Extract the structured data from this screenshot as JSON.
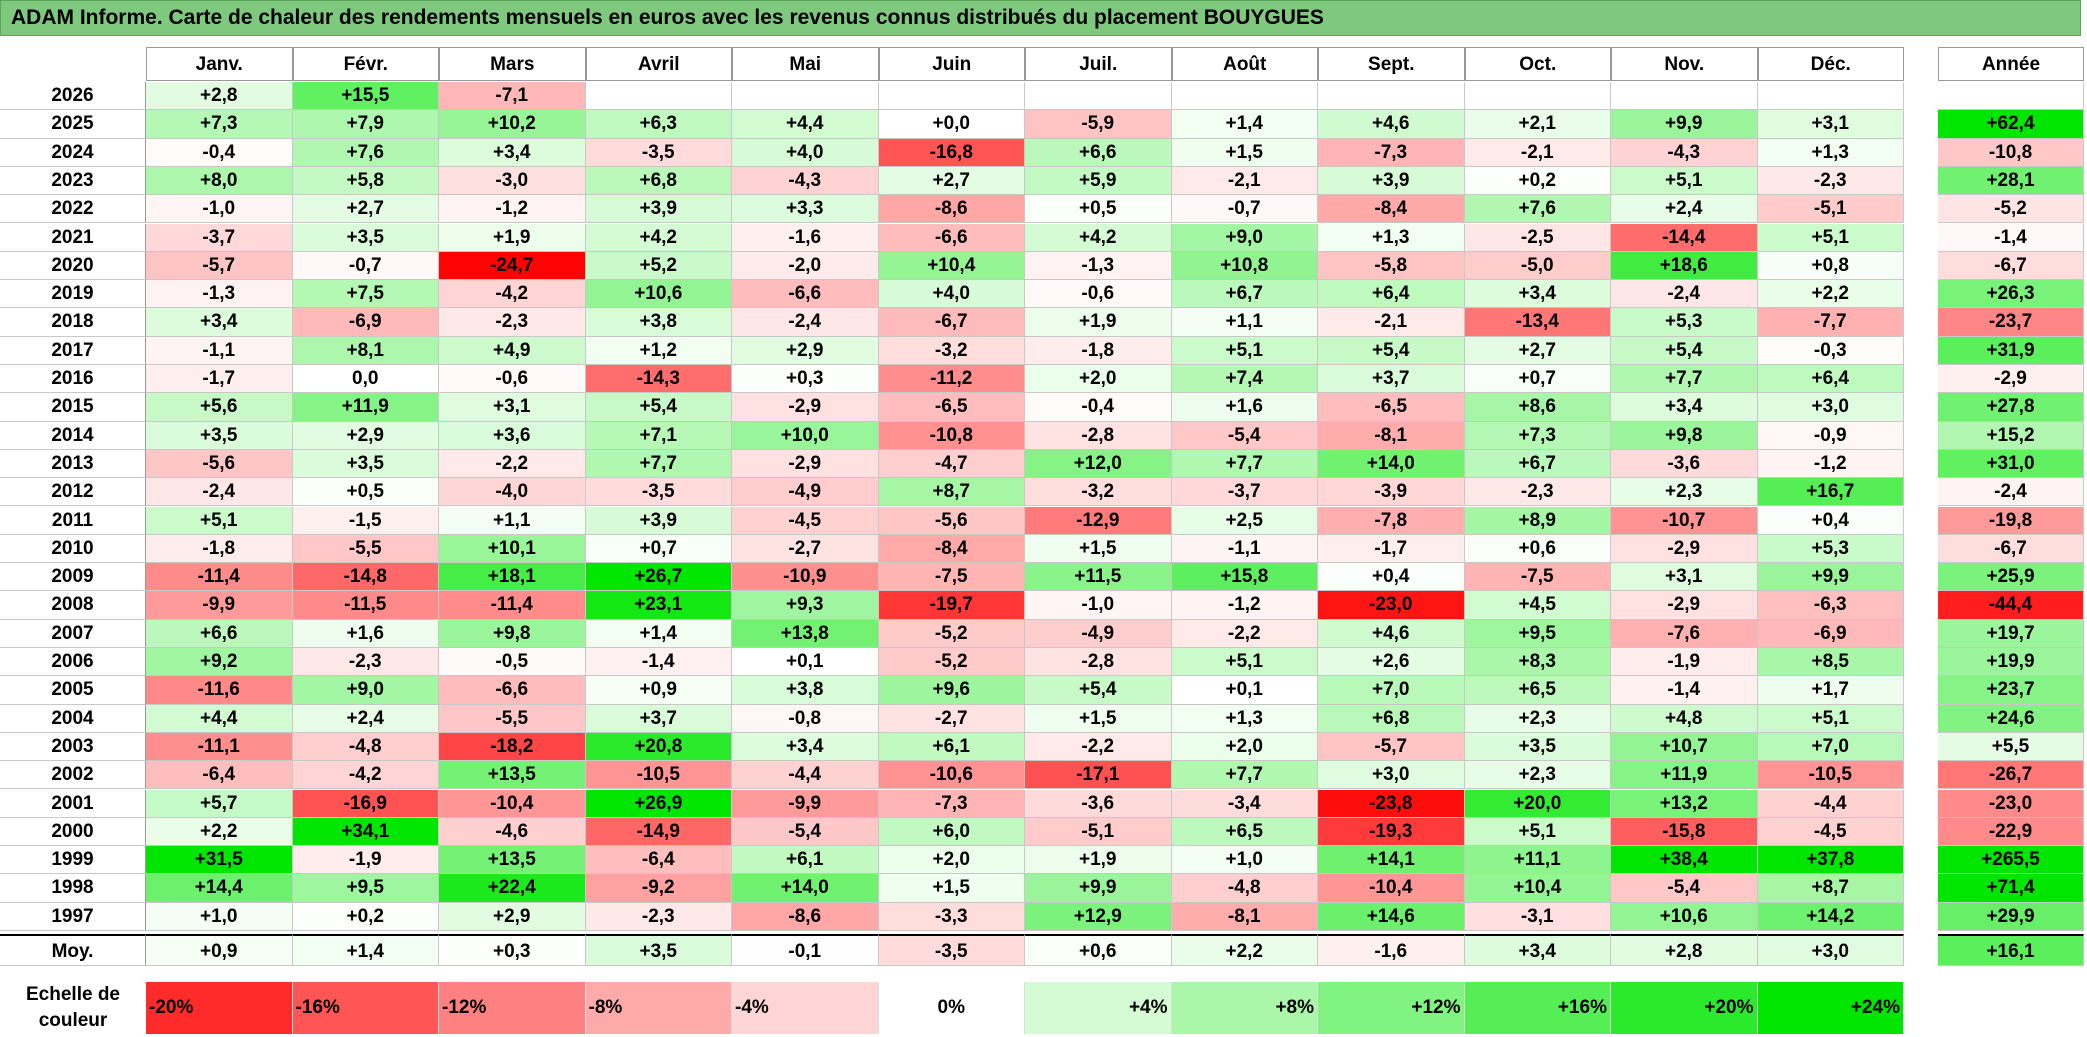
{
  "title": "ADAM Informe. Carte de chaleur des rendements mensuels en euros avec les revenus connus distribués du placement BOUYGUES",
  "chart_data": {
    "type": "heatmap",
    "title": "ADAM Informe. Carte de chaleur des rendements mensuels en euros avec les revenus connus distribués du placement BOUYGUES",
    "columns": [
      "Janv.",
      "Févr.",
      "Mars",
      "Avril",
      "Mai",
      "Juin",
      "Juil.",
      "Août",
      "Sept.",
      "Oct.",
      "Nov.",
      "Déc."
    ],
    "year_header": "Année",
    "rows": [
      {
        "year": "2026",
        "values": [
          "+2,8",
          "+15,5",
          "-7,1",
          "",
          "",
          "",
          "",
          "",
          "",
          "",
          "",
          ""
        ],
        "annual": ""
      },
      {
        "year": "2025",
        "values": [
          "+7,3",
          "+7,9",
          "+10,2",
          "+6,3",
          "+4,4",
          "+0,0",
          "-5,9",
          "+1,4",
          "+4,6",
          "+2,1",
          "+9,9",
          "+3,1"
        ],
        "annual": "+62,4"
      },
      {
        "year": "2024",
        "values": [
          "-0,4",
          "+7,6",
          "+3,4",
          "-3,5",
          "+4,0",
          "-16,8",
          "+6,6",
          "+1,5",
          "-7,3",
          "-2,1",
          "-4,3",
          "+1,3"
        ],
        "annual": "-10,8"
      },
      {
        "year": "2023",
        "values": [
          "+8,0",
          "+5,8",
          "-3,0",
          "+6,8",
          "-4,3",
          "+2,7",
          "+5,9",
          "-2,1",
          "+3,9",
          "+0,2",
          "+5,1",
          "-2,3"
        ],
        "annual": "+28,1"
      },
      {
        "year": "2022",
        "values": [
          "-1,0",
          "+2,7",
          "-1,2",
          "+3,9",
          "+3,3",
          "-8,6",
          "+0,5",
          "-0,7",
          "-8,4",
          "+7,6",
          "+2,4",
          "-5,1"
        ],
        "annual": "-5,2"
      },
      {
        "year": "2021",
        "values": [
          "-3,7",
          "+3,5",
          "+1,9",
          "+4,2",
          "-1,6",
          "-6,6",
          "+4,2",
          "+9,0",
          "+1,3",
          "-2,5",
          "-14,4",
          "+5,1"
        ],
        "annual": "-1,4"
      },
      {
        "year": "2020",
        "values": [
          "-5,7",
          "-0,7",
          "-24,7",
          "+5,2",
          "-2,0",
          "+10,4",
          "-1,3",
          "+10,8",
          "-5,8",
          "-5,0",
          "+18,6",
          "+0,8"
        ],
        "annual": "-6,7"
      },
      {
        "year": "2019",
        "values": [
          "-1,3",
          "+7,5",
          "-4,2",
          "+10,6",
          "-6,6",
          "+4,0",
          "-0,6",
          "+6,7",
          "+6,4",
          "+3,4",
          "-2,4",
          "+2,2"
        ],
        "annual": "+26,3"
      },
      {
        "year": "2018",
        "values": [
          "+3,4",
          "-6,9",
          "-2,3",
          "+3,8",
          "-2,4",
          "-6,7",
          "+1,9",
          "+1,1",
          "-2,1",
          "-13,4",
          "+5,3",
          "-7,7"
        ],
        "annual": "-23,7"
      },
      {
        "year": "2017",
        "values": [
          "-1,1",
          "+8,1",
          "+4,9",
          "+1,2",
          "+2,9",
          "-3,2",
          "-1,8",
          "+5,1",
          "+5,4",
          "+2,7",
          "+5,4",
          "-0,3"
        ],
        "annual": "+31,9"
      },
      {
        "year": "2016",
        "values": [
          "-1,7",
          "0,0",
          "-0,6",
          "-14,3",
          "+0,3",
          "-11,2",
          "+2,0",
          "+7,4",
          "+3,7",
          "+0,7",
          "+7,7",
          "+6,4"
        ],
        "annual": "-2,9"
      },
      {
        "year": "2015",
        "values": [
          "+5,6",
          "+11,9",
          "+3,1",
          "+5,4",
          "-2,9",
          "-6,5",
          "-0,4",
          "+1,6",
          "-6,5",
          "+8,6",
          "+3,4",
          "+3,0"
        ],
        "annual": "+27,8"
      },
      {
        "year": "2014",
        "values": [
          "+3,5",
          "+2,9",
          "+3,6",
          "+7,1",
          "+10,0",
          "-10,8",
          "-2,8",
          "-5,4",
          "-8,1",
          "+7,3",
          "+9,8",
          "-0,9"
        ],
        "annual": "+15,2"
      },
      {
        "year": "2013",
        "values": [
          "-5,6",
          "+3,5",
          "-2,2",
          "+7,7",
          "-2,9",
          "-4,7",
          "+12,0",
          "+7,7",
          "+14,0",
          "+6,7",
          "-3,6",
          "-1,2"
        ],
        "annual": "+31,0"
      },
      {
        "year": "2012",
        "values": [
          "-2,4",
          "+0,5",
          "-4,0",
          "-3,5",
          "-4,9",
          "+8,7",
          "-3,2",
          "-3,7",
          "-3,9",
          "-2,3",
          "+2,3",
          "+16,7"
        ],
        "annual": "-2,4"
      },
      {
        "year": "2011",
        "values": [
          "+5,1",
          "-1,5",
          "+1,1",
          "+3,9",
          "-4,5",
          "-5,6",
          "-12,9",
          "+2,5",
          "-7,8",
          "+8,9",
          "-10,7",
          "+0,4"
        ],
        "annual": "-19,8"
      },
      {
        "year": "2010",
        "values": [
          "-1,8",
          "-5,5",
          "+10,1",
          "+0,7",
          "-2,7",
          "-8,4",
          "+1,5",
          "-1,1",
          "-1,7",
          "+0,6",
          "-2,9",
          "+5,3"
        ],
        "annual": "-6,7"
      },
      {
        "year": "2009",
        "values": [
          "-11,4",
          "-14,8",
          "+18,1",
          "+26,7",
          "-10,9",
          "-7,5",
          "+11,5",
          "+15,8",
          "+0,4",
          "-7,5",
          "+3,1",
          "+9,9"
        ],
        "annual": "+25,9"
      },
      {
        "year": "2008",
        "values": [
          "-9,9",
          "-11,5",
          "-11,4",
          "+23,1",
          "+9,3",
          "-19,7",
          "-1,0",
          "-1,2",
          "-23,0",
          "+4,5",
          "-2,9",
          "-6,3"
        ],
        "annual": "-44,4"
      },
      {
        "year": "2007",
        "values": [
          "+6,6",
          "+1,6",
          "+9,8",
          "+1,4",
          "+13,8",
          "-5,2",
          "-4,9",
          "-2,2",
          "+4,6",
          "+9,5",
          "-7,6",
          "-6,9"
        ],
        "annual": "+19,7"
      },
      {
        "year": "2006",
        "values": [
          "+9,2",
          "-2,3",
          "-0,5",
          "-1,4",
          "+0,1",
          "-5,2",
          "-2,8",
          "+5,1",
          "+2,6",
          "+8,3",
          "-1,9",
          "+8,5"
        ],
        "annual": "+19,9"
      },
      {
        "year": "2005",
        "values": [
          "-11,6",
          "+9,0",
          "-6,6",
          "+0,9",
          "+3,8",
          "+9,6",
          "+5,4",
          "+0,1",
          "+7,0",
          "+6,5",
          "-1,4",
          "+1,7"
        ],
        "annual": "+23,7"
      },
      {
        "year": "2004",
        "values": [
          "+4,4",
          "+2,4",
          "-5,5",
          "+3,7",
          "-0,8",
          "-2,7",
          "+1,5",
          "+1,3",
          "+6,8",
          "+2,3",
          "+4,8",
          "+5,1"
        ],
        "annual": "+24,6"
      },
      {
        "year": "2003",
        "values": [
          "-11,1",
          "-4,8",
          "-18,2",
          "+20,8",
          "+3,4",
          "+6,1",
          "-2,2",
          "+2,0",
          "-5,7",
          "+3,5",
          "+10,7",
          "+7,0"
        ],
        "annual": "+5,5"
      },
      {
        "year": "2002",
        "values": [
          "-6,4",
          "-4,2",
          "+13,5",
          "-10,5",
          "-4,4",
          "-10,6",
          "-17,1",
          "+7,7",
          "+3,0",
          "+2,3",
          "+11,9",
          "-10,5"
        ],
        "annual": "-26,7"
      },
      {
        "year": "2001",
        "values": [
          "+5,7",
          "-16,9",
          "-10,4",
          "+26,9",
          "-9,9",
          "-7,3",
          "-3,6",
          "-3,4",
          "-23,8",
          "+20,0",
          "+13,2",
          "-4,4"
        ],
        "annual": "-23,0"
      },
      {
        "year": "2000",
        "values": [
          "+2,2",
          "+34,1",
          "-4,6",
          "-14,9",
          "-5,4",
          "+6,0",
          "-5,1",
          "+6,5",
          "-19,3",
          "+5,1",
          "-15,8",
          "-4,5"
        ],
        "annual": "-22,9"
      },
      {
        "year": "1999",
        "values": [
          "+31,5",
          "-1,9",
          "+13,5",
          "-6,4",
          "+6,1",
          "+2,0",
          "+1,9",
          "+1,0",
          "+14,1",
          "+11,1",
          "+38,4",
          "+37,8"
        ],
        "annual": "+265,5"
      },
      {
        "year": "1998",
        "values": [
          "+14,4",
          "+9,5",
          "+22,4",
          "-9,2",
          "+14,0",
          "+1,5",
          "+9,9",
          "-4,8",
          "-10,4",
          "+10,4",
          "-5,4",
          "+8,7"
        ],
        "annual": "+71,4"
      },
      {
        "year": "1997",
        "values": [
          "+1,0",
          "+0,2",
          "+2,9",
          "-2,3",
          "-8,6",
          "-3,3",
          "+12,9",
          "-8,1",
          "+14,6",
          "-3,1",
          "+10,6",
          "+14,2"
        ],
        "annual": "+29,9"
      }
    ],
    "average": {
      "label": "Moy.",
      "values": [
        "+0,9",
        "+1,4",
        "+0,3",
        "+3,5",
        "-0,1",
        "-3,5",
        "+0,6",
        "+2,2",
        "-1,6",
        "+3,4",
        "+2,8",
        "+3,0"
      ],
      "annual": "+16,1"
    },
    "scale": {
      "label_line1": "Echelle de",
      "label_line2": "couleur",
      "steps": [
        "-20%",
        "-16%",
        "-12%",
        "-8%",
        "-4%",
        "0%",
        "+4%",
        "+8%",
        "+12%",
        "+16%",
        "+20%",
        "+24%"
      ]
    }
  }
}
